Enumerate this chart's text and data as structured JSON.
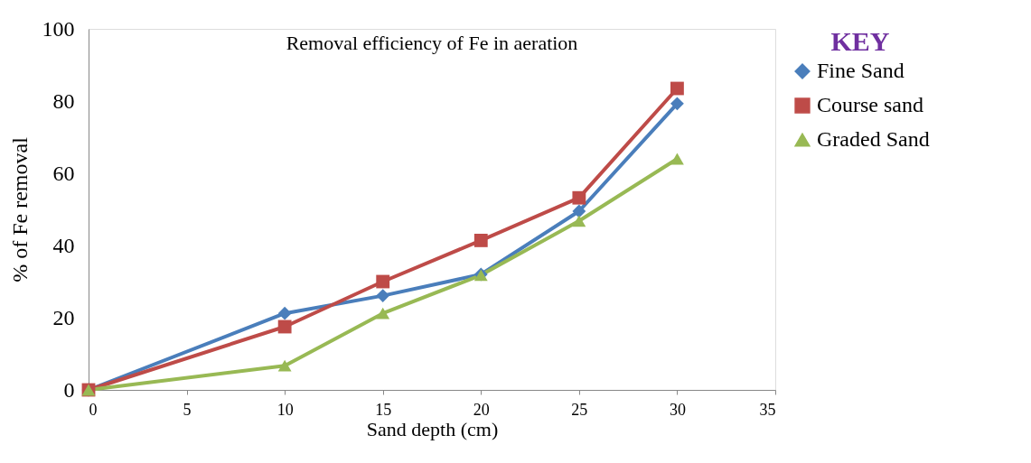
{
  "chart_data": {
    "type": "line",
    "title": "Removal efficiency of Fe in aeration",
    "xlabel": "Sand depth (cm)",
    "ylabel": "% of Fe removal",
    "legend_title": "KEY",
    "legend": "right",
    "grid": false,
    "x": [
      0,
      10,
      15,
      20,
      25,
      30
    ],
    "series": [
      {
        "name": "Fine Sand",
        "color": "#4a7ebb",
        "marker": "diamond",
        "values": [
          0,
          21.2,
          26.1,
          32,
          49.5,
          79.3
        ]
      },
      {
        "name": "Course sand",
        "color": "#be4b48",
        "marker": "square",
        "values": [
          0,
          17.5,
          30,
          41.4,
          53.2,
          83.5
        ]
      },
      {
        "name": "Graded Sand",
        "color": "#98b954",
        "marker": "triangle",
        "values": [
          0,
          6.7,
          21.2,
          31.8,
          46.8,
          64
        ]
      }
    ],
    "xlim": [
      0,
      35
    ],
    "xticks": [
      0,
      5,
      10,
      15,
      20,
      25,
      30,
      35
    ],
    "ylim": [
      0,
      100
    ],
    "yticks": [
      0,
      20,
      40,
      60,
      80,
      100
    ]
  }
}
